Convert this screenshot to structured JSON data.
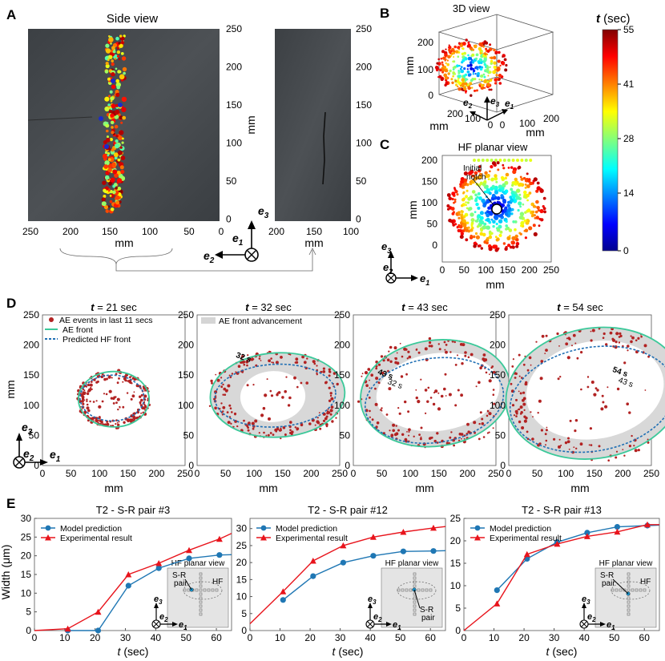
{
  "panels": {
    "A": {
      "letter": "A",
      "title": "Side view",
      "xticks": [
        "250",
        "200",
        "150",
        "100",
        "50",
        "0"
      ],
      "xticks2": [
        "200",
        "150",
        "100"
      ],
      "yticks": [
        "250",
        "200",
        "150",
        "100",
        "50",
        "0"
      ],
      "yticks2": [
        "250",
        "200",
        "150",
        "100",
        "50",
        "0"
      ],
      "xlabel": "mm",
      "xlabel2": "mm",
      "ylabel": "mm"
    },
    "B": {
      "letter": "B",
      "title": "3D view",
      "zticks": [
        "200",
        "100",
        "0"
      ],
      "xticks": [
        "0",
        "100",
        "200"
      ],
      "yticks": [
        "200",
        "100",
        "0"
      ],
      "zlabel": "mm",
      "xlabel": "mm",
      "ylabel": "mm"
    },
    "C": {
      "letter": "C",
      "title": "HF planar view",
      "xticks": [
        "0",
        "50",
        "100",
        "150",
        "200",
        "250"
      ],
      "yticks": [
        "200",
        "150",
        "100",
        "50",
        "0"
      ],
      "xlabel": "mm",
      "ylabel": "mm",
      "annot": [
        "Initial",
        "notch"
      ]
    },
    "colorbar": {
      "label_t": "t",
      "label_unit": " (sec)",
      "ticks": [
        "55",
        "41",
        "28",
        "14",
        "0"
      ]
    },
    "D": {
      "letter": "D",
      "titles_t": [
        "t",
        "t",
        "t",
        "t"
      ],
      "titles_val": [
        " = 21 sec",
        " = 32 sec",
        " = 43 sec",
        " = 54 sec"
      ],
      "xticks": [
        "0",
        "50",
        "100",
        "150",
        "200",
        "250"
      ],
      "yticks": [
        "250",
        "200",
        "150",
        "100",
        "50",
        "0"
      ],
      "xlabel": "mm",
      "ylabel": "mm",
      "legend": [
        "AE events in last 11 secs",
        "AE front",
        "Predicted HF front"
      ],
      "legend2": "AE front advancement",
      "annots": [
        "32 s",
        "43 s",
        "32 s",
        "54 s",
        "43 s"
      ]
    },
    "E": {
      "letter": "E",
      "ylabel": "Width (μm)",
      "xlabel_t": "t",
      "xlabel_unit": " (sec)",
      "legend": [
        "Model prediction",
        "Experimental result"
      ],
      "inset_title": "HF planar view",
      "inset_labels": [
        "S-R",
        "pair",
        "HF",
        "S-R",
        "pair"
      ]
    }
  },
  "axis_labels": {
    "e1": "e",
    "e2": "e",
    "e3": "e",
    "s1": "1",
    "s2": "2",
    "s3": "3"
  },
  "chart_data": [
    {
      "type": "line",
      "title": "T2 - S-R pair #3",
      "xlabel": "t (sec)",
      "ylabel": "Width (μm)",
      "xlim": [
        0,
        65
      ],
      "ylim": [
        0,
        30
      ],
      "xticks": [
        0,
        10,
        20,
        30,
        40,
        50,
        60
      ],
      "yticks": [
        0,
        5,
        10,
        15,
        20,
        25,
        30
      ],
      "series": [
        {
          "name": "Model prediction",
          "color": "#1f77b4",
          "marker": "circle",
          "x": [
            11,
            21,
            31,
            41,
            51,
            61,
            65
          ],
          "y": [
            0,
            0,
            12,
            16.7,
            19.3,
            20.2,
            20.3
          ]
        },
        {
          "name": "Experimental result",
          "color": "#e8141c",
          "marker": "triangle",
          "x": [
            0,
            11,
            21,
            31,
            41,
            51,
            61,
            65
          ],
          "y": [
            0,
            0.5,
            5,
            15,
            18,
            21.5,
            24.5,
            26
          ]
        }
      ]
    },
    {
      "type": "line",
      "title": "T2 - S-R pair #12",
      "xlabel": "t (sec)",
      "ylabel": "",
      "xlim": [
        0,
        65
      ],
      "ylim": [
        0,
        33
      ],
      "xticks": [
        0,
        10,
        20,
        30,
        40,
        50,
        60
      ],
      "yticks": [
        0,
        5,
        10,
        15,
        20,
        25,
        30
      ],
      "series": [
        {
          "name": "Model prediction",
          "color": "#1f77b4",
          "marker": "circle",
          "x": [
            11,
            21,
            31,
            41,
            51,
            61,
            65
          ],
          "y": [
            9,
            16,
            20,
            22,
            23.3,
            23.4,
            23.5
          ]
        },
        {
          "name": "Experimental result",
          "color": "#e8141c",
          "marker": "triangle",
          "x": [
            0,
            11,
            21,
            31,
            41,
            51,
            61,
            65
          ],
          "y": [
            2,
            11.5,
            20.5,
            25,
            27.5,
            29,
            30.2,
            30.6
          ]
        }
      ]
    },
    {
      "type": "line",
      "title": "T2 - S-R pair #13",
      "xlabel": "t (sec)",
      "ylabel": "",
      "xlim": [
        0,
        65
      ],
      "ylim": [
        0,
        25
      ],
      "xticks": [
        0,
        10,
        20,
        30,
        40,
        50,
        60
      ],
      "yticks": [
        0,
        5,
        10,
        15,
        20,
        25
      ],
      "series": [
        {
          "name": "Model prediction",
          "color": "#1f77b4",
          "marker": "circle",
          "x": [
            11,
            21,
            31,
            41,
            51,
            61,
            65
          ],
          "y": [
            9,
            16,
            19.7,
            21.8,
            23.1,
            23.4,
            23.5
          ]
        },
        {
          "name": "Experimental result",
          "color": "#e8141c",
          "marker": "triangle",
          "x": [
            0,
            11,
            21,
            31,
            41,
            51,
            61,
            65
          ],
          "y": [
            0,
            6,
            17,
            19.3,
            21,
            22,
            23.6,
            23.6
          ]
        }
      ]
    }
  ]
}
